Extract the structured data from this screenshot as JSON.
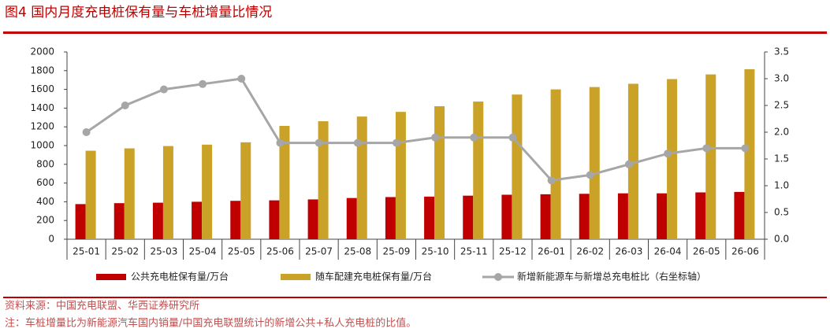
{
  "chart_data": {
    "type": "bar",
    "title": "图4 国内月度充电桩保有量与车桩增量比情况",
    "categories": [
      "25-01",
      "25-02",
      "25-03",
      "25-04",
      "25-05",
      "25-06",
      "25-07",
      "25-08",
      "25-09",
      "25-10",
      "25-11",
      "25-12",
      "26-01",
      "26-02",
      "26-03",
      "26-04",
      "26-05",
      "26-06"
    ],
    "series": [
      {
        "name": "公共充电桩保有量/万台",
        "color": "#c00000",
        "type": "bar",
        "values": [
          375,
          385,
          390,
          400,
          410,
          415,
          425,
          440,
          450,
          455,
          465,
          475,
          480,
          485,
          490,
          490,
          500,
          505
        ]
      },
      {
        "name": "随车配建充电桩保有量/万台",
        "color": "#c9a227",
        "type": "bar",
        "values": [
          945,
          970,
          995,
          1010,
          1035,
          1210,
          1260,
          1310,
          1360,
          1420,
          1470,
          1545,
          1600,
          1625,
          1660,
          1710,
          1760,
          1815
        ]
      },
      {
        "name": "新增新能源车与新增总充电桩比（右坐标轴）",
        "color": "#a6a6a6",
        "type": "line",
        "axis": "y2",
        "values": [
          2.0,
          2.5,
          2.8,
          2.9,
          3.0,
          1.8,
          1.8,
          1.8,
          1.8,
          1.9,
          1.9,
          1.9,
          1.1,
          1.2,
          1.4,
          1.6,
          1.7,
          1.7
        ]
      }
    ],
    "ylim": [
      0,
      2000
    ],
    "yticks": [
      0,
      200,
      400,
      600,
      800,
      1000,
      1200,
      1400,
      1600,
      1800,
      2000
    ],
    "y2lim": [
      0,
      3.5
    ],
    "y2ticks": [
      {
        "value": 0,
        "label": "0.0"
      },
      {
        "value": 0.5,
        "label": "0.5"
      },
      {
        "value": 1,
        "label": "1.0"
      },
      {
        "value": 1.5,
        "label": "1.5"
      },
      {
        "value": 2,
        "label": "2.0"
      },
      {
        "value": 2.5,
        "label": "2.5"
      },
      {
        "value": 3,
        "label": "3.0"
      },
      {
        "value": 3.5,
        "label": "3.5"
      }
    ],
    "source": "资料来源：中国充电联盟、华西证券研究所",
    "note": "注：车桩增量比为新能源汽车国内销量/中国充电联盟统计的新增公共+私人充电桩的比值。"
  }
}
